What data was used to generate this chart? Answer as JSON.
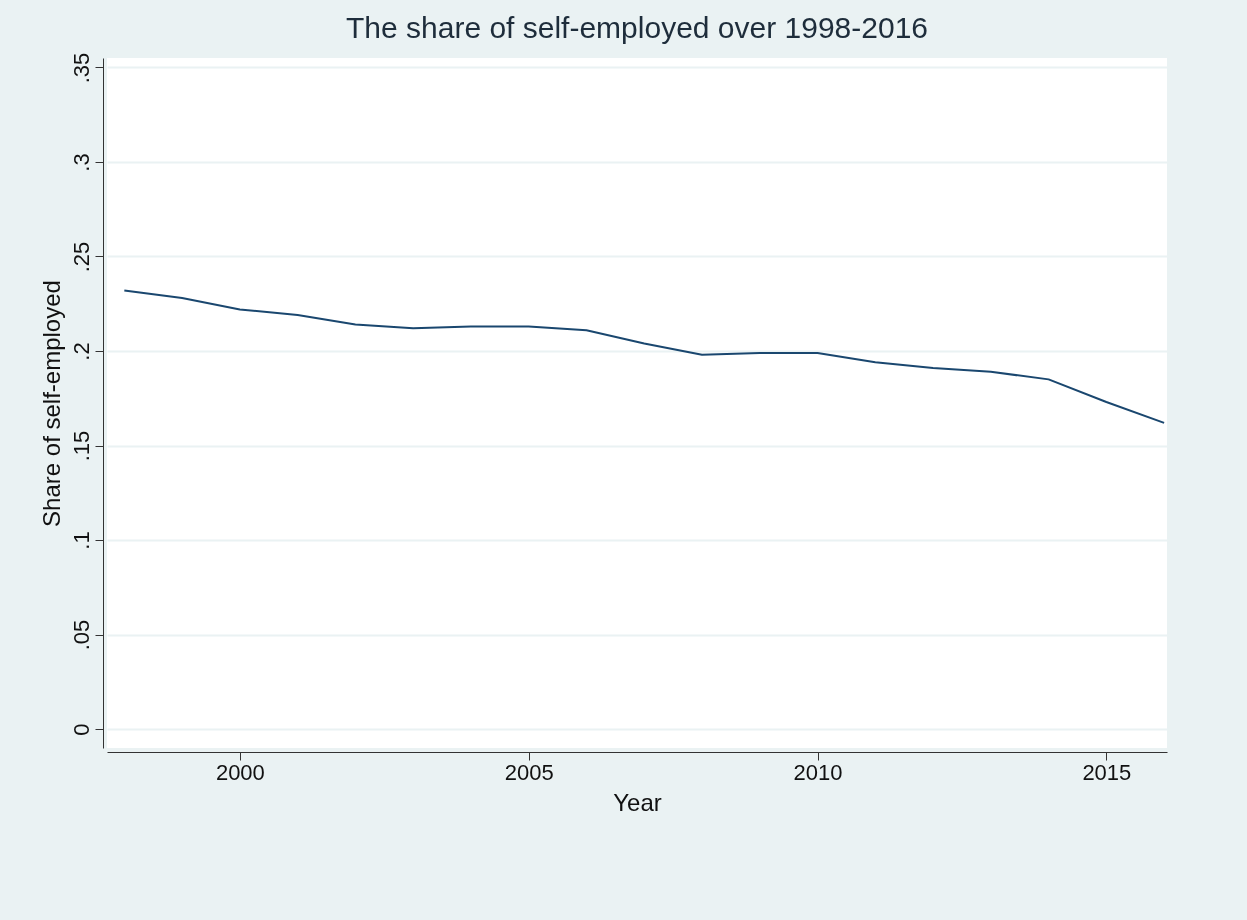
{
  "chart_data": {
    "type": "line",
    "title": "The share of self-employed over 1998-2016",
    "xlabel": "Year",
    "ylabel": "Share of self-employed",
    "x": [
      1998,
      1999,
      2000,
      2001,
      2002,
      2003,
      2004,
      2005,
      2006,
      2007,
      2008,
      2009,
      2010,
      2011,
      2012,
      2013,
      2014,
      2015,
      2016
    ],
    "series": [
      {
        "color": "#1a476f",
        "values": [
          0.232,
          0.228,
          0.222,
          0.219,
          0.214,
          0.212,
          0.213,
          0.213,
          0.211,
          0.204,
          0.198,
          0.199,
          0.199,
          0.194,
          0.191,
          0.189,
          0.185,
          0.173,
          0.162
        ]
      }
    ],
    "xlim": [
      1997.7,
      2016.05
    ],
    "xticks": [
      2000,
      2005,
      2010,
      2015
    ],
    "ylim": [
      -0.01,
      0.355
    ],
    "yticks": [
      0,
      {
        "value": 0.05,
        "label": ".05"
      },
      {
        "value": 0.1,
        "label": ".1"
      },
      {
        "value": 0.15,
        "label": ".15"
      },
      {
        "value": 0.2,
        "label": ".2"
      },
      {
        "value": 0.25,
        "label": ".25"
      },
      {
        "value": 0.3,
        "label": ".3"
      },
      {
        "value": 0.35,
        "label": ".35"
      }
    ],
    "grid": "y",
    "marker": "none",
    "line_style": "solid"
  }
}
